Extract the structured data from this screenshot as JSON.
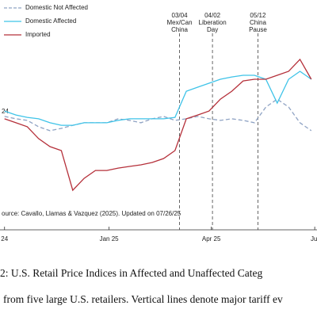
{
  "chart_data": {
    "type": "line",
    "x": [
      0,
      10,
      20,
      30,
      40,
      50,
      60,
      70,
      80,
      90,
      100,
      110,
      120,
      130,
      140,
      150,
      160,
      170,
      180,
      190,
      200,
      210,
      220,
      230,
      240,
      250,
      260,
      270
    ],
    "xlim": [
      -4,
      275
    ],
    "ylim": [
      0,
      100
    ],
    "xticks": [
      {
        "value": 0,
        "label": "24"
      },
      {
        "value": 92,
        "label": "Jan 25"
      },
      {
        "value": 182,
        "label": "Apr 25"
      },
      {
        "value": 273,
        "label": "Jul"
      }
    ],
    "series": [
      {
        "name": "Domestic Not Affected",
        "color": "#8fa3c4",
        "dashed": true,
        "values": [
          50.2,
          49.2,
          48.5,
          45.8,
          44.1,
          45.1,
          46.4,
          47.5,
          47.5,
          47.5,
          49.2,
          48.5,
          47.5,
          49.2,
          50.2,
          48.5,
          49.2,
          50.2,
          49.2,
          48.5,
          49.2,
          48.5,
          47.5,
          54.2,
          57.6,
          54.2,
          47.5,
          44.1
        ]
      },
      {
        "name": "Domestic Affected",
        "color": "#3ec3e8",
        "dashed": false,
        "values": [
          52.5,
          50.8,
          49.8,
          49.2,
          47.5,
          46.4,
          46.4,
          47.5,
          47.5,
          47.5,
          48.5,
          49.2,
          49.2,
          49.2,
          49.2,
          49.8,
          61,
          62.7,
          64.4,
          66.1,
          67.1,
          67.8,
          67.8,
          66.1,
          55.9,
          66.1,
          69.5,
          66.1
        ]
      },
      {
        "name": "Imported",
        "color": "#b5303a",
        "dashed": false,
        "values": [
          49.2,
          47.5,
          45.8,
          40.7,
          37.3,
          35.6,
          18.6,
          23.7,
          27.1,
          27.1,
          28.1,
          28.8,
          29.5,
          30.5,
          32.2,
          35.6,
          49.2,
          50.8,
          52.5,
          57.6,
          61,
          65.4,
          66.1,
          66.1,
          67.8,
          69.5,
          74.6,
          66.1
        ]
      }
    ],
    "annotations": [
      {
        "x": 154,
        "label": [
          "03/04",
          "Mex/Can",
          "China"
        ]
      },
      {
        "x": 183,
        "label": [
          "04/02",
          "Liberation",
          "Day"
        ]
      },
      {
        "x": 223,
        "label": [
          "05/12",
          "China",
          "Pause"
        ]
      }
    ],
    "side_text": "24",
    "source": "ource: Cavallo, Llamas & Vazquez (2025). Updated on 07/26/25",
    "caption": [
      "2: U.S. Retail Price Indices in Affected and Unaffected Categ",
      "from five large U.S. retailers. Vertical lines denote major tariff ev"
    ]
  }
}
